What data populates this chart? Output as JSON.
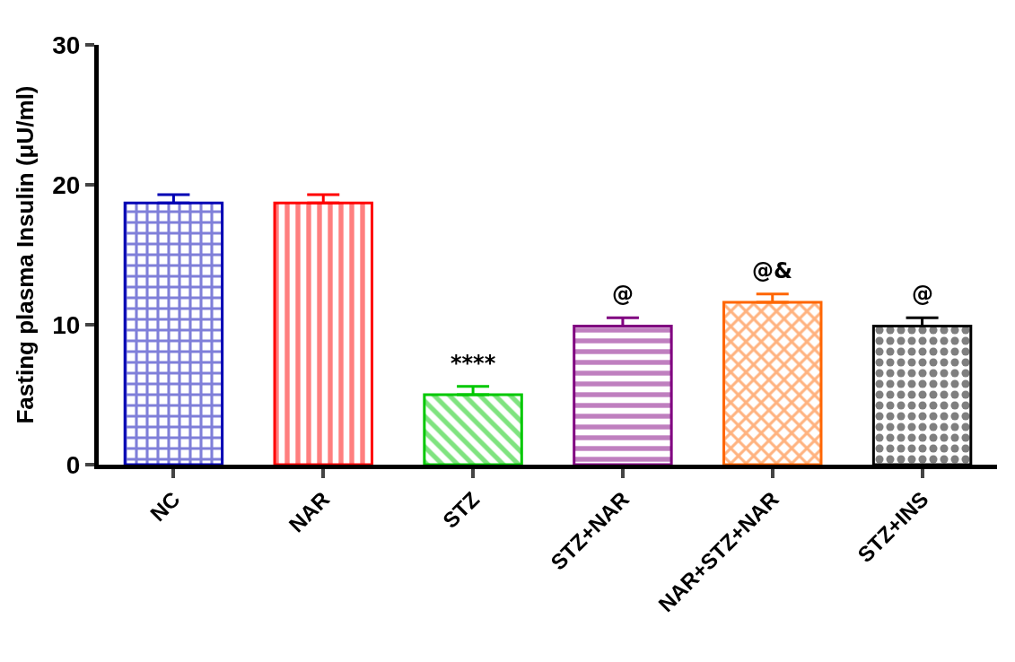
{
  "chart_data": {
    "type": "bar",
    "ylabel": "Fasting plasma Insulin (μU/ml)",
    "categories": [
      "NC",
      "NAR",
      "STZ",
      "STZ+NAR",
      "NAR+STZ+NAR",
      "STZ+INS"
    ],
    "values": [
      18.7,
      18.7,
      5.0,
      9.9,
      11.6,
      9.9
    ],
    "errors": [
      [
        18.7,
        19.3
      ],
      [
        18.7,
        19.3
      ],
      [
        5.0,
        5.6
      ],
      [
        9.9,
        10.5
      ],
      [
        11.6,
        12.2
      ],
      [
        9.9,
        10.5
      ]
    ],
    "colors": [
      "#0000b4",
      "#ff0000",
      "#00c800",
      "#800080",
      "#ff6600",
      "#000000"
    ],
    "ylim": [
      0,
      30
    ],
    "yticks": [
      0,
      10,
      20,
      30
    ],
    "annotations": [
      {
        "text": "****",
        "x": "STZ",
        "y": 5.6
      },
      {
        "text": "@",
        "x": "STZ+NAR",
        "y": 10.5
      },
      {
        "text": "@&",
        "x": "NAR+STZ+NAR",
        "y": 12.2
      },
      {
        "text": "@",
        "x": "STZ+INS",
        "y": 10.5
      }
    ]
  }
}
